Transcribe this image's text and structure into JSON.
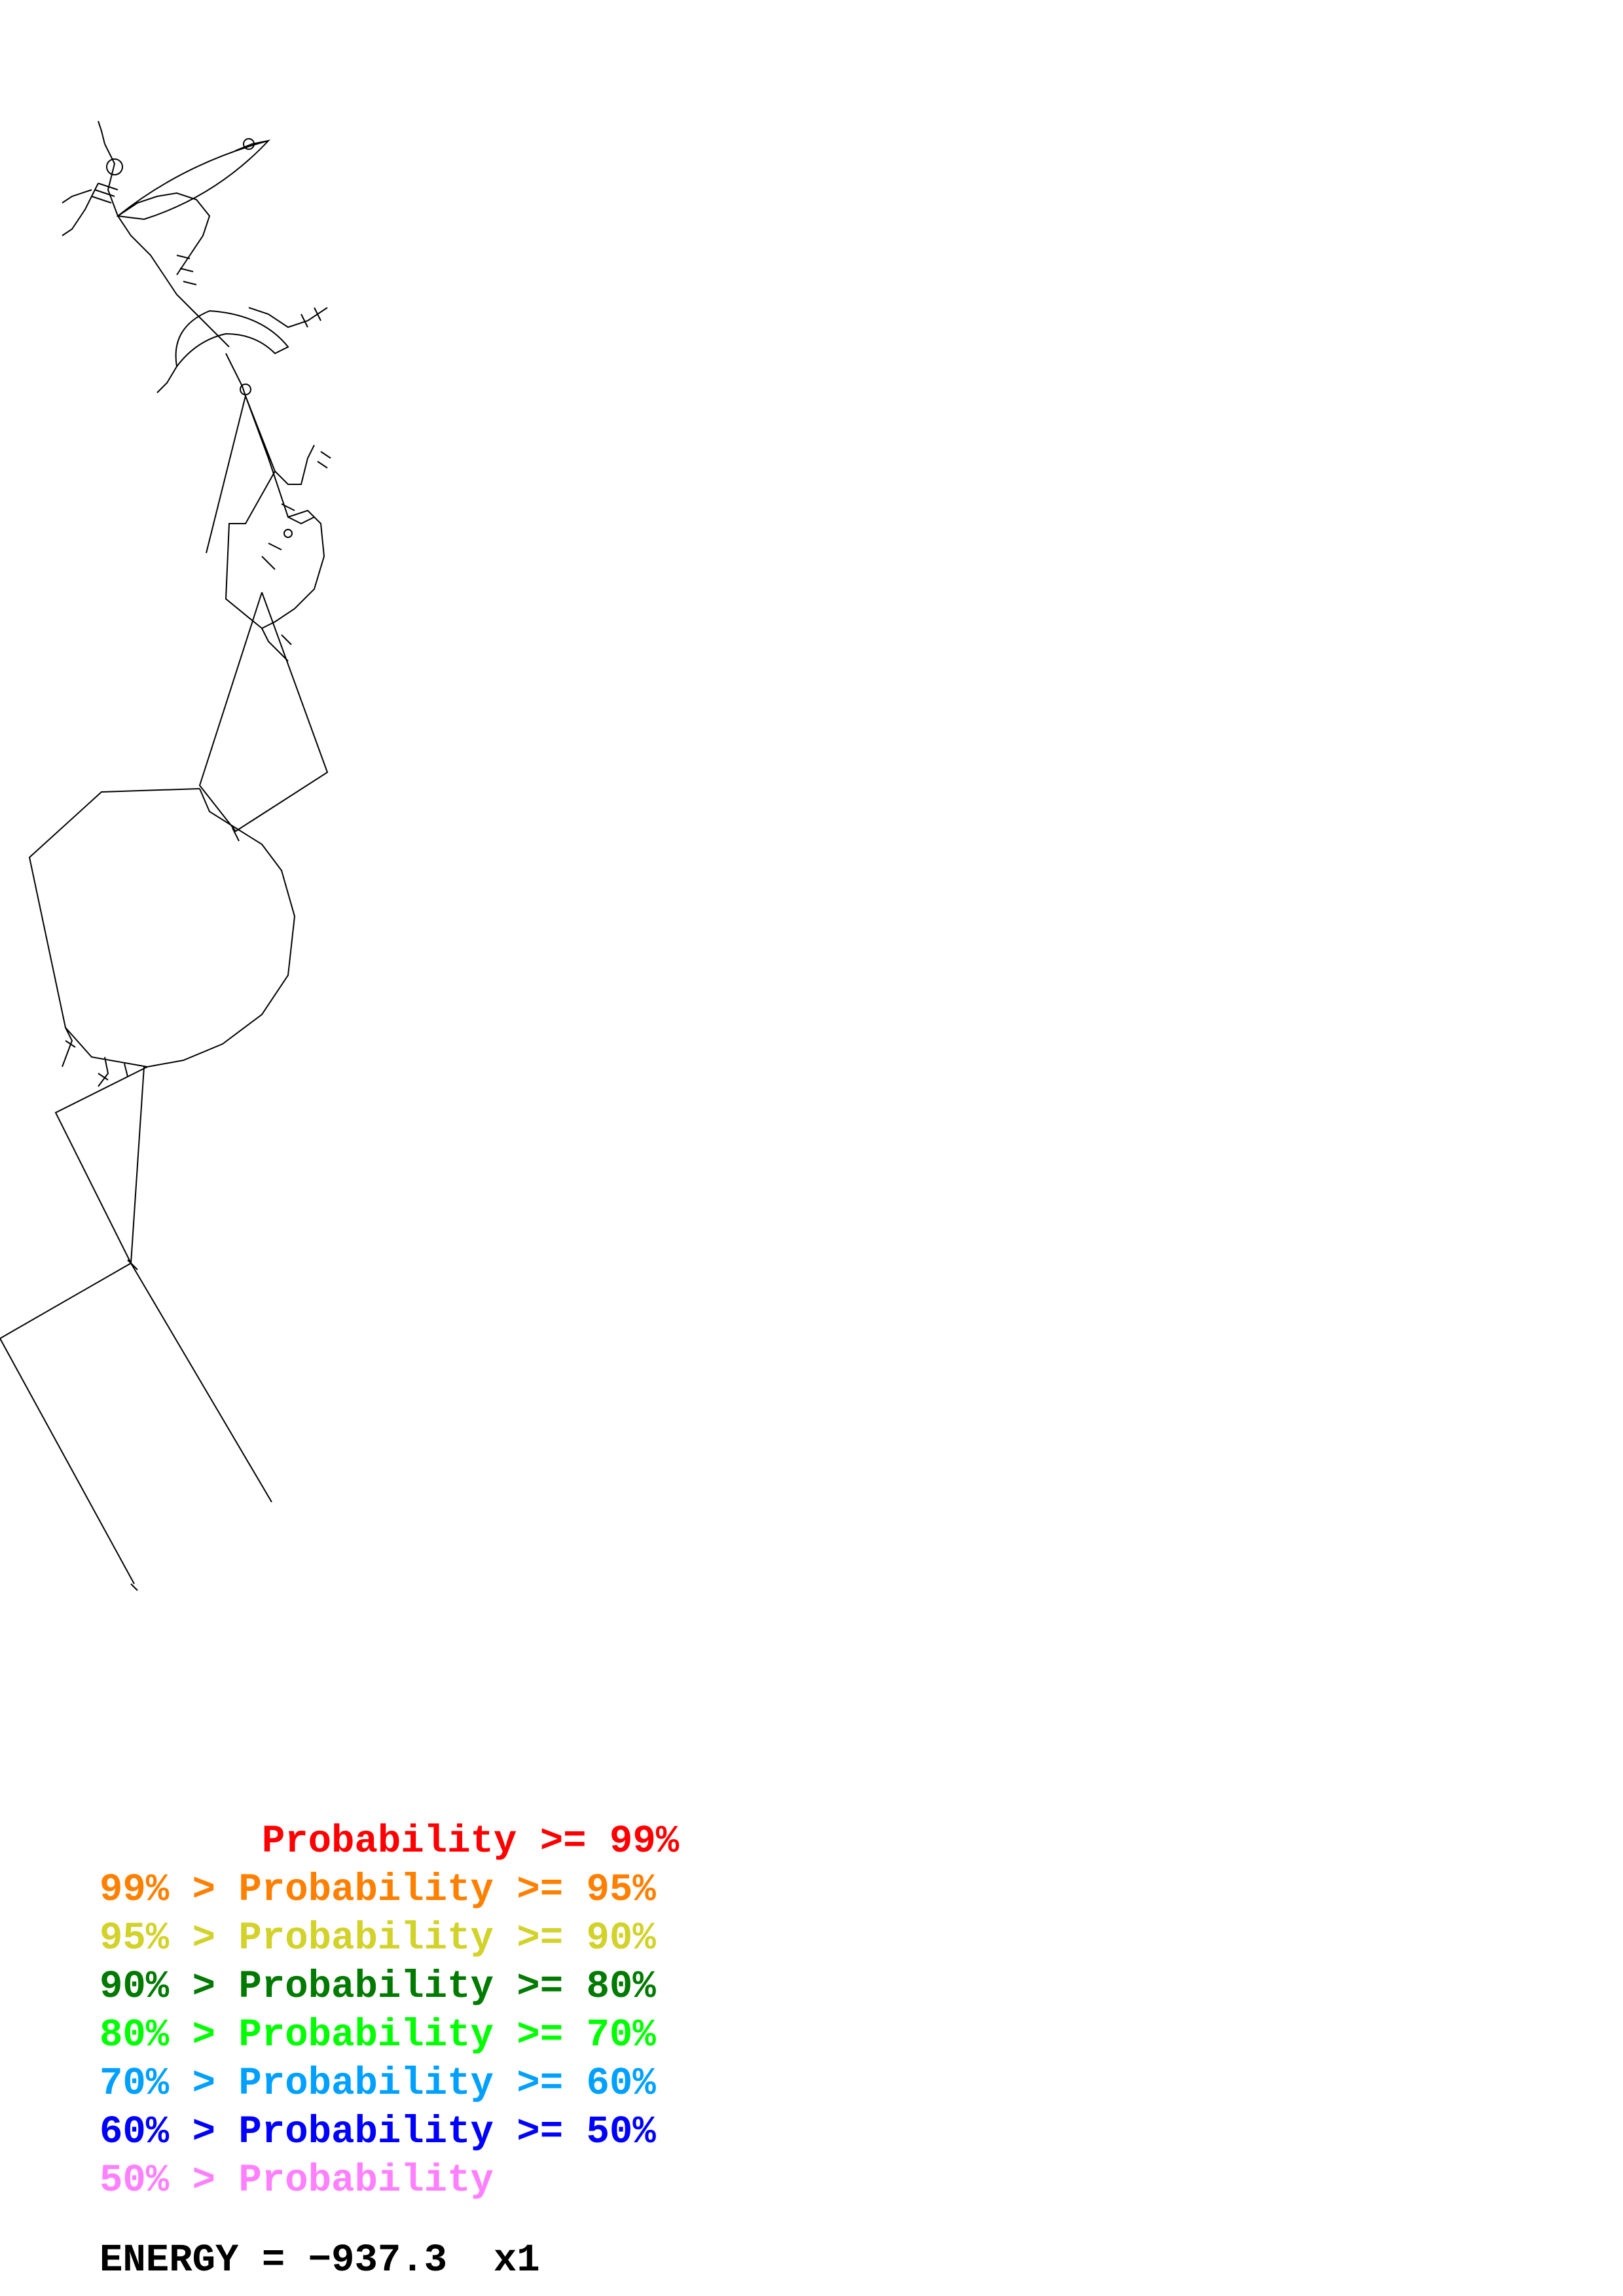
{
  "legend": [
    {
      "text": "       Probability >= 99%",
      "color": "#ff0000"
    },
    {
      "text": "99% > Probability >= 95%",
      "color": "#ff8000"
    },
    {
      "text": "95% > Probability >= 90%",
      "color": "#d2d22a"
    },
    {
      "text": "90% > Probability >= 80%",
      "color": "#007a00"
    },
    {
      "text": "80% > Probability >= 70%",
      "color": "#00ff00"
    },
    {
      "text": "70% > Probability >= 60%",
      "color": "#00a0ff"
    },
    {
      "text": "60% > Probability >= 50%",
      "color": "#0000ff"
    },
    {
      "text": "50% > Probability",
      "color": "#ff80ff"
    }
  ],
  "energy": {
    "text": "ENERGY = −937.3  x1"
  },
  "colors": {
    "backbone": "#000000",
    "background": "#ffffff"
  }
}
